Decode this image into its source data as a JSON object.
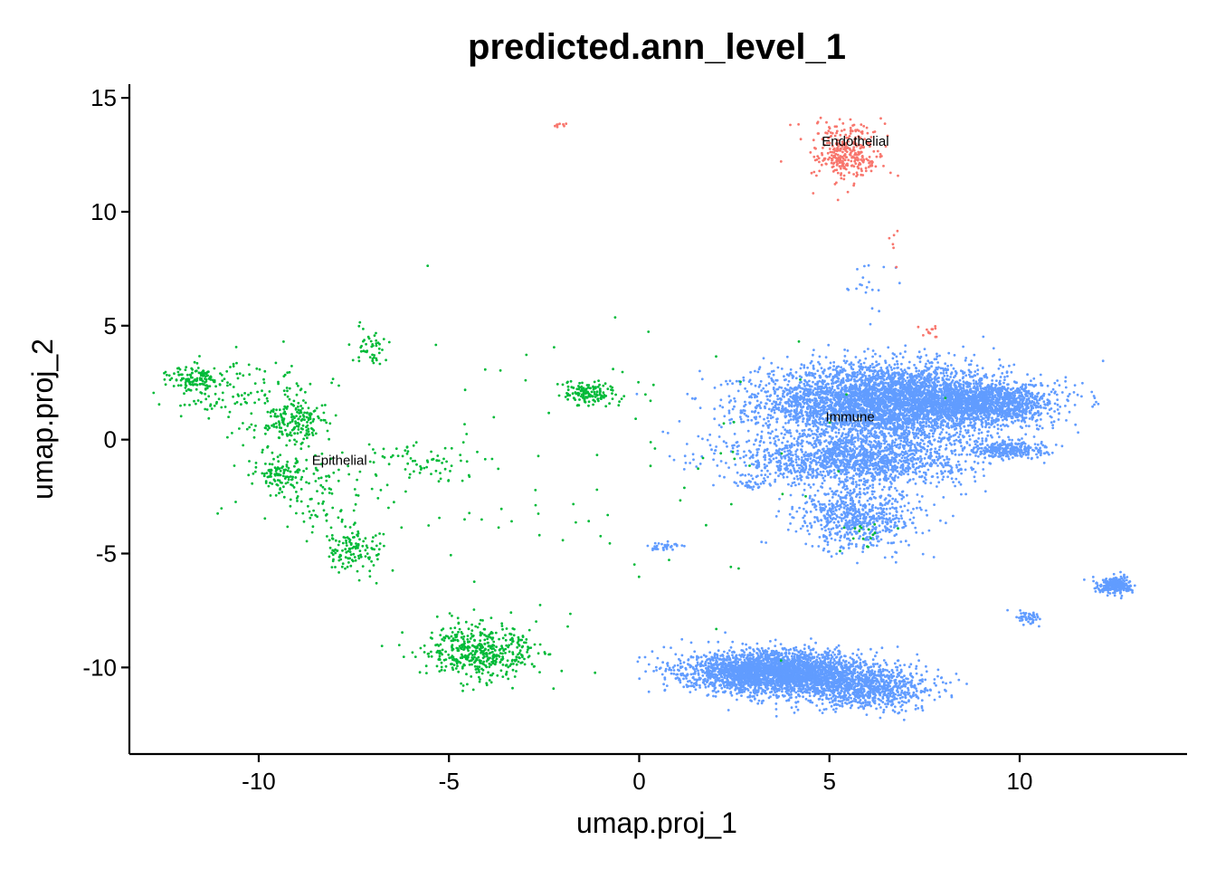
{
  "chart_data": {
    "type": "scatter",
    "title": "predicted.ann_level_1",
    "xlabel": "umap.proj_1",
    "ylabel": "umap.proj_2",
    "xlim": [
      -13.4,
      14.4
    ],
    "ylim": [
      -13.8,
      15.6
    ],
    "x_ticks": [
      -10,
      -5,
      0,
      5,
      10
    ],
    "y_ticks": [
      15,
      10,
      5,
      0,
      -5,
      -10
    ],
    "x_tick_labels": [
      "-10",
      "-5",
      "0",
      "5",
      "10"
    ],
    "y_tick_labels": [
      "15",
      "10",
      "5",
      "0",
      "-5",
      "-10"
    ],
    "grid": false,
    "legend": "none",
    "categories": [
      "Endothelial",
      "Epithelial",
      "Immune"
    ],
    "colors": {
      "Endothelial": "#F8766D",
      "Epithelial": "#00BA38",
      "Immune": "#619CFF"
    },
    "cluster_labels": [
      {
        "text": "Endothelial",
        "x": 4.8,
        "y": 12.9
      },
      {
        "text": "Epithelial",
        "x": -8.6,
        "y": -1.1
      },
      {
        "text": "Immune",
        "x": 4.9,
        "y": 0.8
      }
    ],
    "clusters": [
      {
        "category": "Endothelial",
        "cx": 5.4,
        "cy": 12.4,
        "sx": 0.45,
        "sy": 0.55,
        "n": 280
      },
      {
        "category": "Endothelial",
        "cx": 5.3,
        "cy": 13.6,
        "sx": 0.6,
        "sy": 0.25,
        "n": 40
      },
      {
        "category": "Endothelial",
        "cx": -2.0,
        "cy": 13.8,
        "sx": 0.12,
        "sy": 0.08,
        "n": 8
      },
      {
        "category": "Endothelial",
        "cx": 7.6,
        "cy": 4.7,
        "sx": 0.15,
        "sy": 0.15,
        "n": 12
      },
      {
        "category": "Endothelial",
        "cx": 6.7,
        "cy": 8.8,
        "sx": 0.12,
        "sy": 0.6,
        "n": 6
      },
      {
        "category": "Epithelial",
        "cx": -11.6,
        "cy": 2.6,
        "sx": 0.35,
        "sy": 0.3,
        "n": 130
      },
      {
        "category": "Epithelial",
        "cx": -9.0,
        "cy": 0.7,
        "sx": 0.45,
        "sy": 0.5,
        "n": 170
      },
      {
        "category": "Epithelial",
        "cx": -9.4,
        "cy": -1.5,
        "sx": 0.35,
        "sy": 0.35,
        "n": 110
      },
      {
        "category": "Epithelial",
        "cx": -10.3,
        "cy": 1.8,
        "sx": 1.0,
        "sy": 1.0,
        "n": 140
      },
      {
        "category": "Epithelial",
        "cx": -8.4,
        "cy": -2.5,
        "sx": 0.9,
        "sy": 0.9,
        "n": 90
      },
      {
        "category": "Epithelial",
        "cx": -7.5,
        "cy": -4.8,
        "sx": 0.45,
        "sy": 0.5,
        "n": 130
      },
      {
        "category": "Epithelial",
        "cx": -7.0,
        "cy": 4.0,
        "sx": 0.25,
        "sy": 0.45,
        "n": 45
      },
      {
        "category": "Epithelial",
        "cx": -5.8,
        "cy": -1.0,
        "sx": 0.8,
        "sy": 0.4,
        "n": 70
      },
      {
        "category": "Epithelial",
        "cx": -1.3,
        "cy": 2.0,
        "sx": 0.35,
        "sy": 0.25,
        "n": 140
      },
      {
        "category": "Epithelial",
        "cx": -4.1,
        "cy": -9.3,
        "sx": 0.75,
        "sy": 0.6,
        "n": 460
      },
      {
        "category": "Epithelial",
        "cx": -3.0,
        "cy": -1.5,
        "sx": 2.6,
        "sy": 3.0,
        "n": 70
      },
      {
        "category": "Epithelial",
        "cx": 2.5,
        "cy": -0.5,
        "sx": 2.0,
        "sy": 3.5,
        "n": 28
      },
      {
        "category": "Epithelial",
        "cx": 6.0,
        "cy": -4.2,
        "sx": 0.4,
        "sy": 0.3,
        "n": 14
      },
      {
        "category": "Immune",
        "cx": 6.4,
        "cy": 1.6,
        "sx": 1.6,
        "sy": 0.85,
        "n": 4200
      },
      {
        "category": "Immune",
        "cx": 5.6,
        "cy": -0.9,
        "sx": 1.5,
        "sy": 0.55,
        "n": 1400
      },
      {
        "category": "Immune",
        "cx": 9.1,
        "cy": 1.6,
        "sx": 0.9,
        "sy": 0.45,
        "n": 1300
      },
      {
        "category": "Immune",
        "cx": 9.7,
        "cy": -0.4,
        "sx": 0.5,
        "sy": 0.2,
        "n": 300
      },
      {
        "category": "Immune",
        "cx": 5.8,
        "cy": -3.4,
        "sx": 0.8,
        "sy": 0.7,
        "n": 650
      },
      {
        "category": "Immune",
        "cx": 3.6,
        "cy": -10.2,
        "sx": 1.15,
        "sy": 0.45,
        "n": 3000
      },
      {
        "category": "Immune",
        "cx": 5.9,
        "cy": -10.9,
        "sx": 0.9,
        "sy": 0.45,
        "n": 900
      },
      {
        "category": "Immune",
        "cx": 12.5,
        "cy": -6.4,
        "sx": 0.22,
        "sy": 0.18,
        "n": 260
      },
      {
        "category": "Immune",
        "cx": 10.2,
        "cy": -7.8,
        "sx": 0.15,
        "sy": 0.15,
        "n": 55
      },
      {
        "category": "Immune",
        "cx": 0.7,
        "cy": -4.7,
        "sx": 0.25,
        "sy": 0.1,
        "n": 35
      },
      {
        "category": "Immune",
        "cx": 2.9,
        "cy": -2.0,
        "sx": 0.2,
        "sy": 0.1,
        "n": 25
      },
      {
        "category": "Immune",
        "cx": 6.1,
        "cy": 6.4,
        "sx": 0.3,
        "sy": 0.7,
        "n": 20
      }
    ]
  }
}
